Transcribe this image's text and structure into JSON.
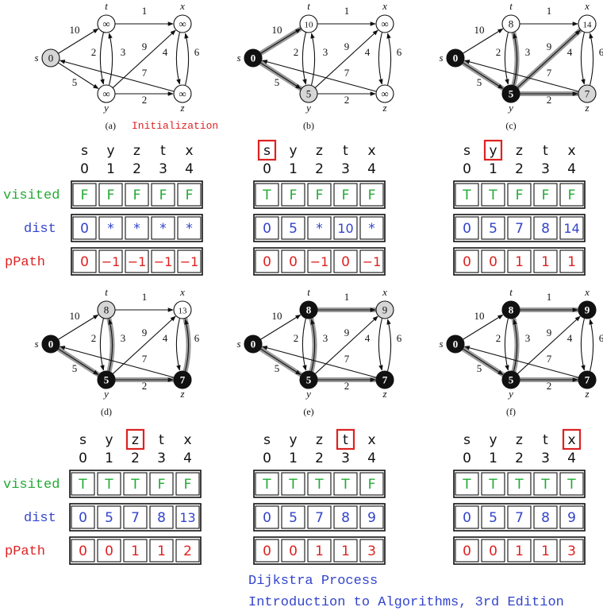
{
  "header_letters": [
    "s",
    "y",
    "z",
    "t",
    "x"
  ],
  "header_indices": [
    "0",
    "1",
    "2",
    "3",
    "4"
  ],
  "row_labels": {
    "visited": "visited",
    "dist": "dist",
    "pPath": "pPath"
  },
  "colors": {
    "visited": "#22aa33",
    "dist": "#3344cc",
    "pPath": "#dd2222",
    "highlight_box": "#dd2222",
    "visited_node": "#111111",
    "frontier_node": "#d6d6d6",
    "unvisited_node": "#ffffff",
    "tree_edge": "#9a9a9a"
  },
  "graph": {
    "vertex_names": {
      "s": "s",
      "t": "t",
      "x": "x",
      "y": "y",
      "z": "z"
    },
    "edges": [
      {
        "from": "s",
        "to": "t",
        "weight": "10"
      },
      {
        "from": "s",
        "to": "y",
        "weight": "5"
      },
      {
        "from": "t",
        "to": "x",
        "weight": "1"
      },
      {
        "from": "t",
        "to": "y",
        "weight": "2"
      },
      {
        "from": "y",
        "to": "t",
        "weight": "3"
      },
      {
        "from": "y",
        "to": "x",
        "weight": "9"
      },
      {
        "from": "y",
        "to": "z",
        "weight": "2"
      },
      {
        "from": "z",
        "to": "s",
        "weight": "7"
      },
      {
        "from": "x",
        "to": "z",
        "weight": "4"
      },
      {
        "from": "z",
        "to": "x",
        "weight": "6"
      }
    ]
  },
  "panels": [
    {
      "id": "a",
      "caption_label": "(a)",
      "caption_extra": "Initialization",
      "highlight": null,
      "node_values": {
        "s": "0",
        "t": "∞",
        "x": "∞",
        "y": "∞",
        "z": "∞"
      },
      "node_states": {
        "s": "frontier",
        "t": "unvisited",
        "x": "unvisited",
        "y": "unvisited",
        "z": "unvisited"
      },
      "tree_edges": [],
      "visited": [
        "F",
        "F",
        "F",
        "F",
        "F"
      ],
      "dist": [
        "0",
        "*",
        "*",
        "*",
        "*"
      ],
      "pPath": [
        "0",
        "−1",
        "−1",
        "−1",
        "−1"
      ]
    },
    {
      "id": "b",
      "caption_label": "(b)",
      "caption_extra": "",
      "highlight": 0,
      "node_values": {
        "s": "0",
        "t": "10",
        "x": "∞",
        "y": "5",
        "z": "∞"
      },
      "node_states": {
        "s": "visited",
        "t": "unvisited",
        "x": "unvisited",
        "y": "frontier",
        "z": "unvisited"
      },
      "tree_edges": [
        "s-t",
        "s-y"
      ],
      "visited": [
        "T",
        "F",
        "F",
        "F",
        "F"
      ],
      "dist": [
        "0",
        "5",
        "*",
        "10",
        "*"
      ],
      "pPath": [
        "0",
        "0",
        "−1",
        "0",
        "−1"
      ]
    },
    {
      "id": "c",
      "caption_label": "(c)",
      "caption_extra": "",
      "highlight": 1,
      "node_values": {
        "s": "0",
        "t": "8",
        "x": "14",
        "y": "5",
        "z": "7"
      },
      "node_states": {
        "s": "visited",
        "t": "unvisited",
        "x": "unvisited",
        "y": "visited",
        "z": "frontier"
      },
      "tree_edges": [
        "s-y",
        "y-t",
        "y-x",
        "y-z"
      ],
      "visited": [
        "T",
        "T",
        "F",
        "F",
        "F"
      ],
      "dist": [
        "0",
        "5",
        "7",
        "8",
        "14"
      ],
      "pPath": [
        "0",
        "0",
        "1",
        "1",
        "1"
      ]
    },
    {
      "id": "d",
      "caption_label": "(d)",
      "caption_extra": "",
      "highlight": 2,
      "node_values": {
        "s": "0",
        "t": "8",
        "x": "13",
        "y": "5",
        "z": "7"
      },
      "node_states": {
        "s": "visited",
        "t": "frontier",
        "x": "unvisited",
        "y": "visited",
        "z": "visited"
      },
      "tree_edges": [
        "s-y",
        "y-t",
        "y-z",
        "z-x"
      ],
      "visited": [
        "T",
        "T",
        "T",
        "F",
        "F"
      ],
      "dist": [
        "0",
        "5",
        "7",
        "8",
        "13"
      ],
      "pPath": [
        "0",
        "0",
        "1",
        "1",
        "2"
      ]
    },
    {
      "id": "e",
      "caption_label": "(e)",
      "caption_extra": "",
      "highlight": 3,
      "node_values": {
        "s": "0",
        "t": "8",
        "x": "9",
        "y": "5",
        "z": "7"
      },
      "node_states": {
        "s": "visited",
        "t": "visited",
        "x": "frontier",
        "y": "visited",
        "z": "visited"
      },
      "tree_edges": [
        "s-y",
        "y-t",
        "y-z",
        "t-x"
      ],
      "visited": [
        "T",
        "T",
        "T",
        "T",
        "F"
      ],
      "dist": [
        "0",
        "5",
        "7",
        "8",
        "9"
      ],
      "pPath": [
        "0",
        "0",
        "1",
        "1",
        "3"
      ]
    },
    {
      "id": "f",
      "caption_label": "(f)",
      "caption_extra": "",
      "highlight": 4,
      "node_values": {
        "s": "0",
        "t": "8",
        "x": "9",
        "y": "5",
        "z": "7"
      },
      "node_states": {
        "s": "visited",
        "t": "visited",
        "x": "visited",
        "y": "visited",
        "z": "visited"
      },
      "tree_edges": [
        "s-y",
        "y-t",
        "y-z",
        "t-x"
      ],
      "visited": [
        "T",
        "T",
        "T",
        "T",
        "T"
      ],
      "dist": [
        "0",
        "5",
        "7",
        "8",
        "9"
      ],
      "pPath": [
        "0",
        "0",
        "1",
        "1",
        "3"
      ]
    }
  ],
  "footer": {
    "line1": "Dijkstra Process",
    "line2": "Introduction to Algorithms, 3rd Edition"
  }
}
